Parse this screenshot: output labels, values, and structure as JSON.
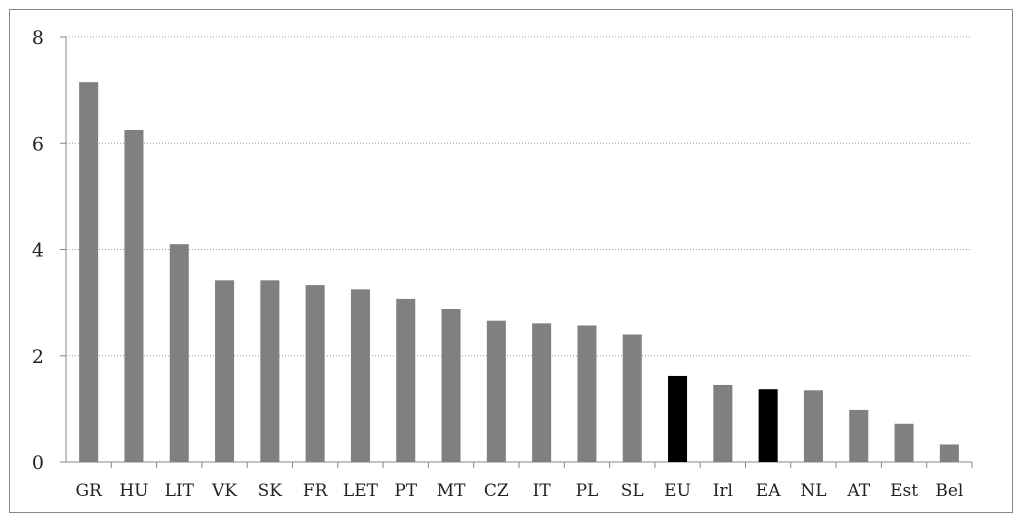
{
  "chart_data": {
    "type": "bar",
    "categories": [
      "GR",
      "HU",
      "LIT",
      "VK",
      "SK",
      "FR",
      "LET",
      "PT",
      "MT",
      "CZ",
      "IT",
      "PL",
      "SL",
      "EU",
      "Irl",
      "EA",
      "NL",
      "AT",
      "Est",
      "Bel"
    ],
    "values": [
      7.15,
      6.25,
      4.1,
      3.42,
      3.42,
      3.33,
      3.25,
      3.07,
      2.88,
      2.66,
      2.61,
      2.57,
      2.4,
      1.62,
      1.45,
      1.37,
      1.35,
      0.98,
      0.72,
      0.33
    ],
    "bar_colors": [
      "#808080",
      "#808080",
      "#808080",
      "#808080",
      "#808080",
      "#808080",
      "#808080",
      "#808080",
      "#808080",
      "#808080",
      "#808080",
      "#808080",
      "#808080",
      "#000000",
      "#808080",
      "#000000",
      "#808080",
      "#808080",
      "#808080",
      "#808080"
    ],
    "title": "",
    "xlabel": "",
    "ylabel": "",
    "ylim": [
      0,
      8
    ],
    "yticks": [
      "0",
      "2",
      "4",
      "6",
      "8"
    ],
    "grid": "horizontal-dotted",
    "legend": "none"
  },
  "colors": {
    "bar_default": "#808080",
    "bar_highlight": "#000000",
    "gridline": "#9a9a9a",
    "axis": "#888888"
  }
}
